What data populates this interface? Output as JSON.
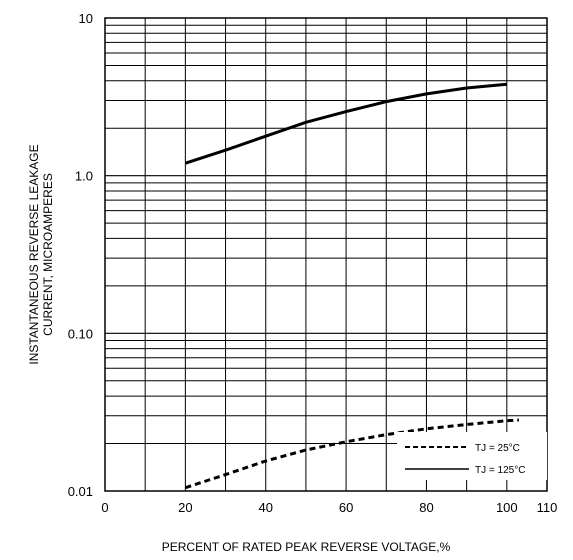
{
  "chart_data": {
    "type": "line",
    "xlabel": "PERCENT OF RATED PEAK REVERSE VOLTAGE,%",
    "ylabel_lines": [
      "INSTANTANEOUS REVERSE LEAKAGE",
      "CURRENT, MICROAMPERES"
    ],
    "xlim": [
      0,
      110
    ],
    "ylim": [
      0.01,
      10
    ],
    "yscale": "log",
    "grid": true,
    "x_ticks": [
      {
        "value": 0,
        "label": "0"
      },
      {
        "value": 20,
        "label": "20"
      },
      {
        "value": 40,
        "label": "40"
      },
      {
        "value": 60,
        "label": "60"
      },
      {
        "value": 80,
        "label": "80"
      },
      {
        "value": 100,
        "label": "100"
      },
      {
        "value": 110,
        "label": "110"
      }
    ],
    "y_ticks": [
      {
        "value": 0.01,
        "label": "0.01"
      },
      {
        "value": 0.1,
        "label": "0.10"
      },
      {
        "value": 1,
        "label": "1.0"
      },
      {
        "value": 10,
        "label": "10"
      }
    ],
    "legend_position": "bottom-right",
    "series": [
      {
        "name": "TJ = 25°C",
        "style": "dashed",
        "x": [
          20,
          30,
          40,
          50,
          60,
          70,
          80,
          90,
          100,
          103
        ],
        "y": [
          0.0105,
          0.0127,
          0.0155,
          0.0182,
          0.0205,
          0.0228,
          0.0248,
          0.0264,
          0.0279,
          0.0282
        ]
      },
      {
        "name": "TJ = 125°C",
        "style": "solid",
        "x": [
          20,
          30,
          40,
          50,
          60,
          70,
          80,
          90,
          100
        ],
        "y": [
          1.2,
          1.45,
          1.78,
          2.18,
          2.55,
          2.95,
          3.3,
          3.6,
          3.8
        ]
      }
    ]
  }
}
